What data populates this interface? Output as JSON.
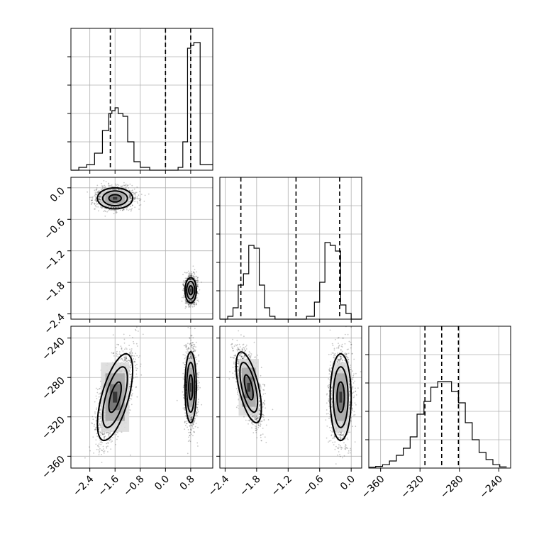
{
  "chart_data": {
    "type": "scatter",
    "title": "",
    "variables": [
      "",
      "",
      ""
    ],
    "ranges": [
      [
        -3.0,
        1.5
      ],
      [
        -2.5,
        0.2
      ],
      [
        -372,
        -228
      ]
    ],
    "ticks": {
      "p0": [
        "-2.4",
        "-1.6",
        "-0.8",
        "0.0",
        "0.8"
      ],
      "p1": [
        "0.0",
        "-0.6",
        "-1.2",
        "-1.8",
        "-2.4"
      ],
      "p1_x": [
        "-2.4",
        "-1.8",
        "-1.2",
        "-0.6",
        "0.0"
      ],
      "p2": [
        "-240",
        "-280",
        "-320",
        "-360"
      ],
      "p2_x": [
        "-360",
        "-320",
        "-280",
        "-240"
      ]
    },
    "quantile_lines": {
      "p0": [
        -1.75,
        0.0,
        0.8
      ],
      "p1": [
        -2.1,
        -1.05,
        -0.22
      ],
      "p2": [
        -315,
        -298,
        -281
      ]
    },
    "histograms": {
      "p0": {
        "edges": [
          -3.0,
          -2.75,
          -2.5,
          -2.25,
          -2.0,
          -1.8,
          -1.7,
          -1.6,
          -1.5,
          -1.35,
          -1.2,
          -1.0,
          -0.8,
          -0.5,
          0.0,
          0.2,
          0.4,
          0.55,
          0.7,
          0.8,
          0.9,
          1.1,
          1.5
        ],
        "counts": [
          0.0,
          0.01,
          0.02,
          0.06,
          0.14,
          0.2,
          0.21,
          0.22,
          0.2,
          0.19,
          0.1,
          0.03,
          0.01,
          0.0,
          0.0,
          0.0,
          0.01,
          0.1,
          0.43,
          0.44,
          0.45,
          0.02
        ]
      },
      "p1": {
        "edges": [
          -2.5,
          -2.35,
          -2.25,
          -2.15,
          -2.05,
          -1.95,
          -1.85,
          -1.75,
          -1.65,
          -1.55,
          -1.45,
          -1.35,
          -1.1,
          -0.85,
          -0.7,
          -0.6,
          -0.5,
          -0.4,
          -0.3,
          -0.2,
          -0.1,
          0.0,
          0.2
        ],
        "counts": [
          0.0,
          0.01,
          0.04,
          0.12,
          0.16,
          0.26,
          0.25,
          0.12,
          0.04,
          0.01,
          0.0,
          0.0,
          0.0,
          0.01,
          0.06,
          0.13,
          0.27,
          0.26,
          0.24,
          0.05,
          0.02,
          0.0
        ]
      },
      "p2": {
        "edges": [
          -372,
          -365,
          -358,
          -351,
          -344,
          -337,
          -330,
          -323,
          -316,
          -309,
          -302,
          -295,
          -288,
          -281,
          -274,
          -267,
          -260,
          -253,
          -246,
          -239,
          -232
        ],
        "counts": [
          0.003,
          0.006,
          0.012,
          0.025,
          0.045,
          0.07,
          0.11,
          0.19,
          0.235,
          0.285,
          0.305,
          0.305,
          0.27,
          0.23,
          0.16,
          0.1,
          0.055,
          0.03,
          0.012,
          0.004
        ]
      }
    },
    "clusters": [
      {
        "name": "",
        "mean": [
          -1.6,
          -0.2,
          -300
        ],
        "std": [
          0.28,
          0.1,
          22
        ],
        "corr02": 0.62,
        "weight": 0.5
      },
      {
        "name": "",
        "mean": [
          0.8,
          -1.95,
          -290
        ],
        "std": [
          0.09,
          0.12,
          18
        ],
        "corr12": -0.6,
        "weight": 0.5
      }
    ],
    "contour_levels": [
      "",
      "",
      ""
    ],
    "grid": true,
    "legend": false
  }
}
